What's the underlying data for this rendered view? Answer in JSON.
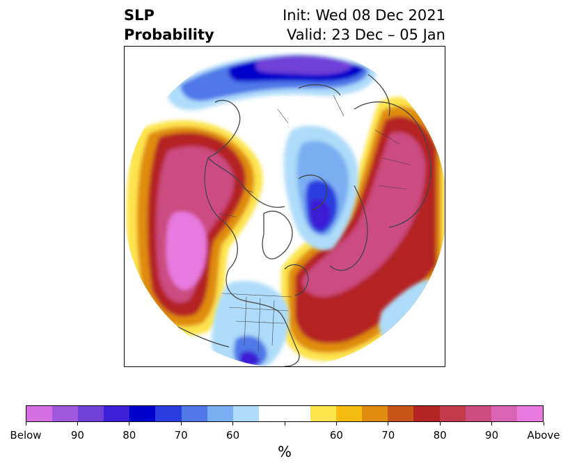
{
  "title": {
    "variable": "SLP",
    "product": "Probability",
    "init": "Init: Wed 08 Dec 2021",
    "valid": "Valid: 23 Dec – 05 Jan"
  },
  "map": {
    "projection": "north-polar-stereographic",
    "features": [
      "coastlines",
      "country-borders",
      "state-borders"
    ]
  },
  "colorbar": {
    "colors": [
      "#d56ee0",
      "#a058e0",
      "#7040d8",
      "#3c1ed6",
      "#0000cc",
      "#2a3de0",
      "#5078e8",
      "#7aaef2",
      "#aedcfa",
      "#ffffff",
      "#ffffff",
      "#fde44e",
      "#f5bb10",
      "#e08c10",
      "#c85618",
      "#b42424",
      "#c23a4c",
      "#cc4c80",
      "#d864b2",
      "#e87ae0"
    ],
    "tick_labels": [
      "Below",
      "90",
      "80",
      "70",
      "60",
      "",
      "60",
      "70",
      "80",
      "90",
      "Above"
    ],
    "unit_label": "%"
  }
}
